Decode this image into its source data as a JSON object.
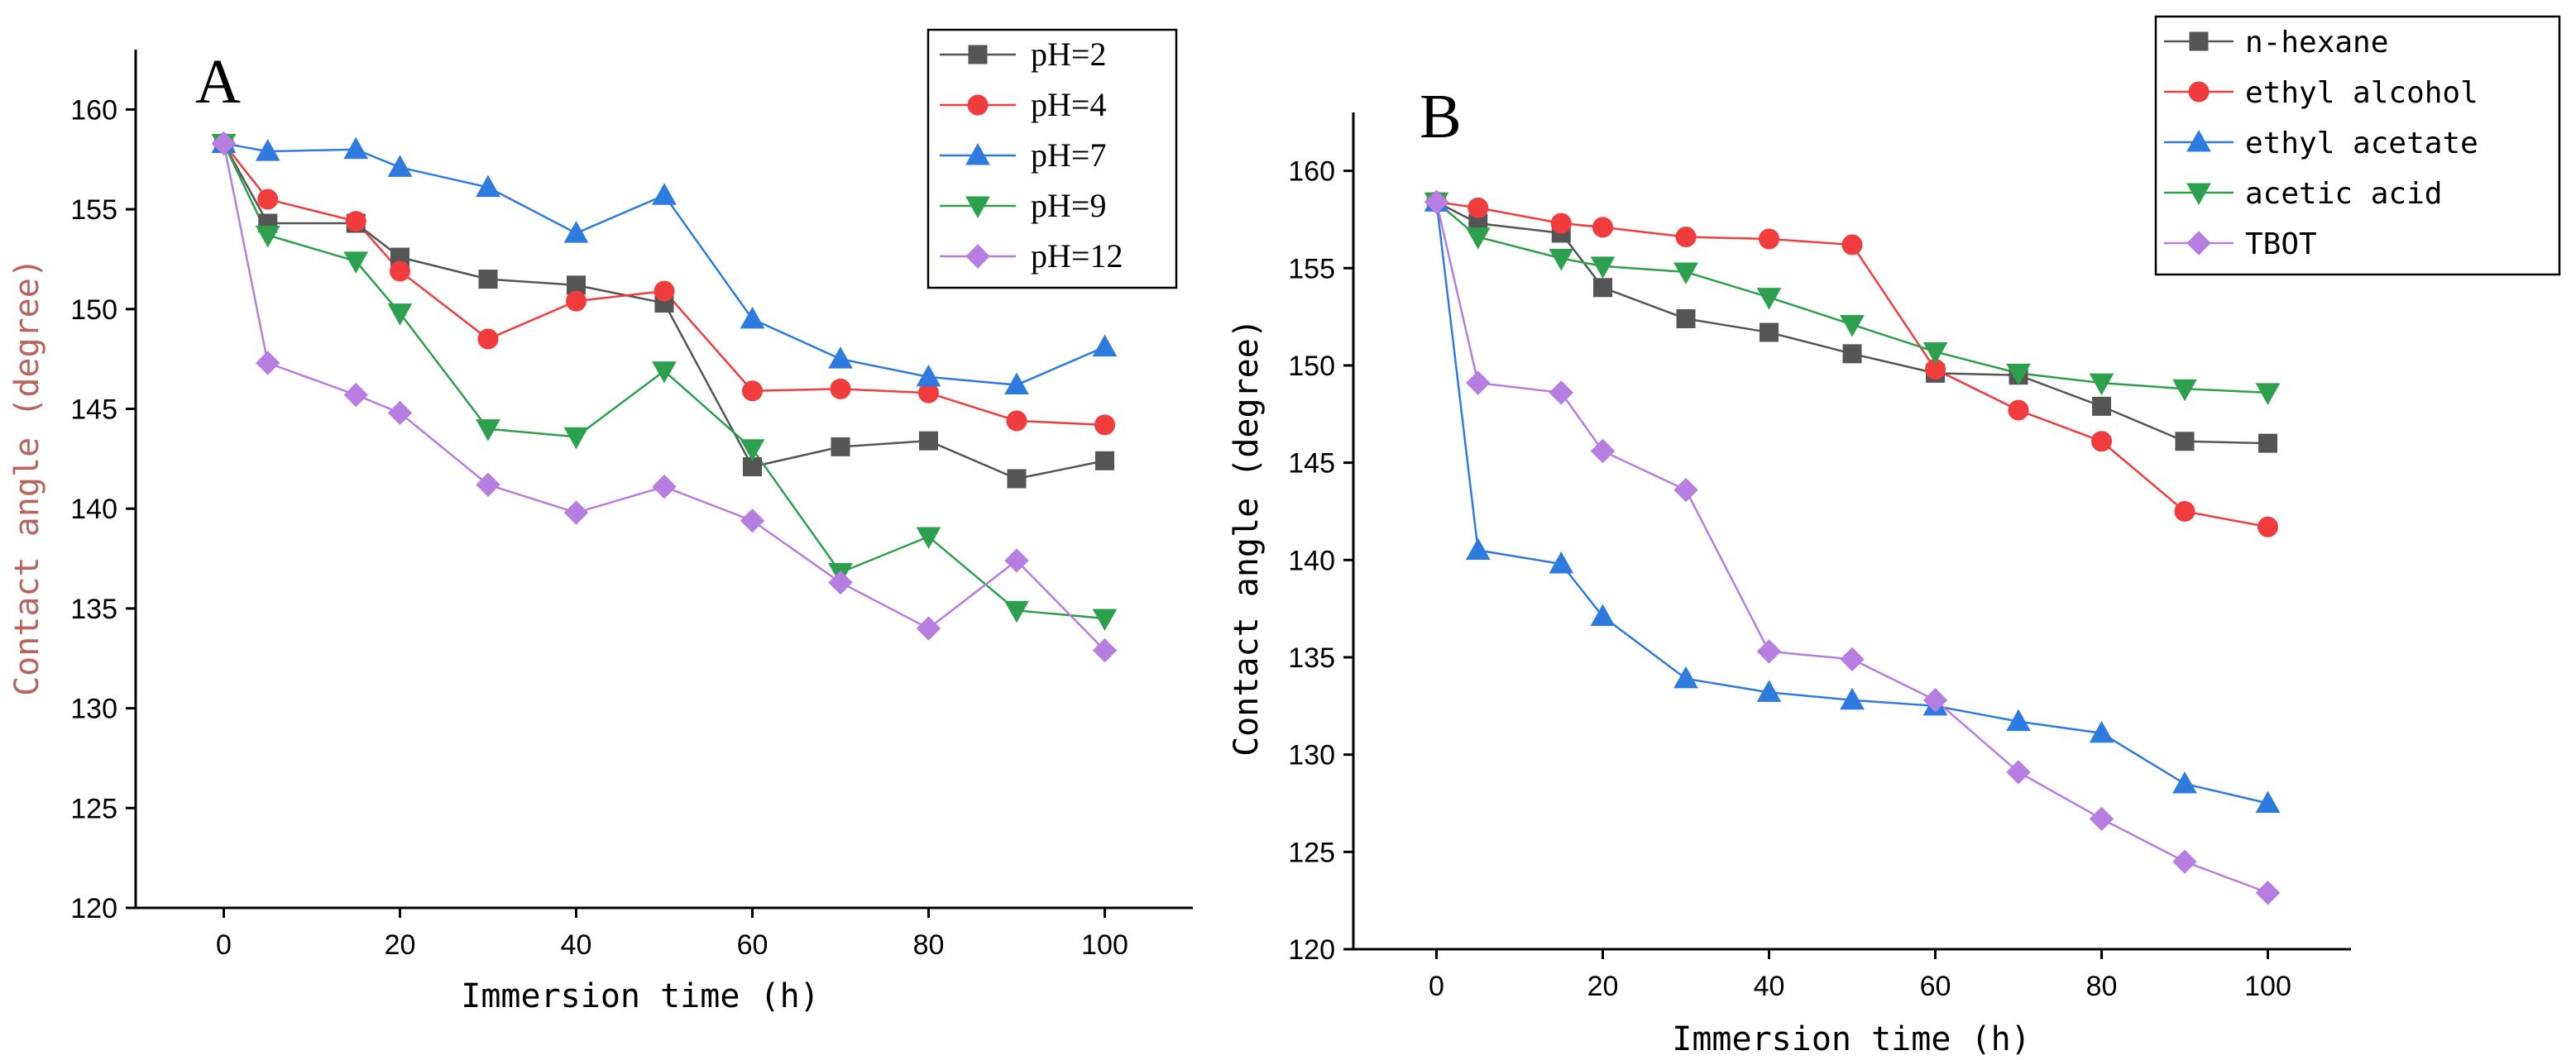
{
  "chart_data": [
    {
      "panel": "A",
      "type": "line",
      "xlabel": "Immersion time (h)",
      "ylabel": "Contact angle (degree)",
      "xlim": [
        -10,
        110
      ],
      "ylim": [
        120,
        163
      ],
      "xticks": [
        "0",
        "20",
        "40",
        "60",
        "80",
        "100"
      ],
      "yticks": [
        "120",
        "125",
        "130",
        "135",
        "140",
        "145",
        "150",
        "155",
        "160"
      ],
      "legend_position": "top-right",
      "x": [
        0,
        5,
        15,
        20,
        30,
        40,
        50,
        60,
        70,
        80,
        90,
        100
      ],
      "series": [
        {
          "name": "pH=2",
          "color": "#555555",
          "marker": "square",
          "values": [
            158.3,
            154.3,
            154.3,
            152.6,
            151.5,
            151.2,
            150.3,
            142.1,
            143.1,
            143.4,
            141.5,
            142.4
          ]
        },
        {
          "name": "pH=4",
          "color": "#f03c3c",
          "marker": "circle",
          "values": [
            158.3,
            155.5,
            154.4,
            151.9,
            148.5,
            150.4,
            150.9,
            145.9,
            146.0,
            145.8,
            144.4,
            144.2
          ]
        },
        {
          "name": "pH=7",
          "color": "#2e7be0",
          "marker": "triangle-up",
          "values": [
            158.3,
            157.9,
            158.0,
            157.1,
            156.1,
            153.8,
            155.7,
            149.5,
            147.5,
            146.6,
            146.2,
            148.1
          ]
        },
        {
          "name": "pH=9",
          "color": "#2ca04c",
          "marker": "triangle-down",
          "values": [
            158.3,
            153.7,
            152.4,
            149.8,
            144.0,
            143.6,
            146.9,
            143.0,
            136.8,
            138.6,
            134.9,
            134.5
          ]
        },
        {
          "name": "pH=12",
          "color": "#b57ee0",
          "marker": "diamond",
          "values": [
            158.3,
            147.3,
            145.7,
            144.8,
            141.2,
            139.8,
            141.1,
            139.4,
            136.3,
            134.0,
            137.4,
            132.9
          ]
        }
      ]
    },
    {
      "panel": "B",
      "type": "line",
      "xlabel": "Immersion time (h)",
      "ylabel": "Contact angle (degree)",
      "xlim": [
        -10,
        110
      ],
      "ylim": [
        120,
        163
      ],
      "xticks": [
        "0",
        "20",
        "40",
        "60",
        "80",
        "100"
      ],
      "yticks": [
        "120",
        "125",
        "130",
        "135",
        "140",
        "145",
        "150",
        "155",
        "160"
      ],
      "legend_position": "top-right",
      "x": [
        0,
        5,
        15,
        20,
        30,
        40,
        50,
        60,
        70,
        80,
        90,
        100
      ],
      "series": [
        {
          "name": "n-hexane",
          "color": "#555555",
          "marker": "square",
          "values": [
            158.4,
            157.3,
            156.8,
            154.0,
            152.4,
            151.7,
            150.6,
            149.6,
            149.5,
            147.9,
            146.1,
            146.0
          ]
        },
        {
          "name": "ethyl alcohol",
          "color": "#f03c3c",
          "marker": "circle",
          "values": [
            158.4,
            158.1,
            157.3,
            157.1,
            156.6,
            156.5,
            156.2,
            149.8,
            147.7,
            146.1,
            142.5,
            141.7
          ]
        },
        {
          "name": "ethyl acetate",
          "color": "#2e7be0",
          "marker": "triangle-up",
          "values": [
            158.4,
            140.5,
            139.8,
            137.1,
            133.9,
            133.2,
            132.8,
            132.5,
            131.7,
            131.1,
            128.5,
            127.5
          ]
        },
        {
          "name": "acetic acid",
          "color": "#2ca04c",
          "marker": "triangle-down",
          "values": [
            158.4,
            156.6,
            155.5,
            155.1,
            154.8,
            153.5,
            152.1,
            150.7,
            149.6,
            149.1,
            148.8,
            148.6
          ]
        },
        {
          "name": "TBOT",
          "color": "#b57ee0",
          "marker": "diamond",
          "values": [
            158.4,
            149.1,
            148.6,
            145.6,
            143.6,
            135.3,
            134.9,
            132.8,
            129.1,
            126.7,
            124.5,
            122.9
          ]
        }
      ]
    }
  ]
}
